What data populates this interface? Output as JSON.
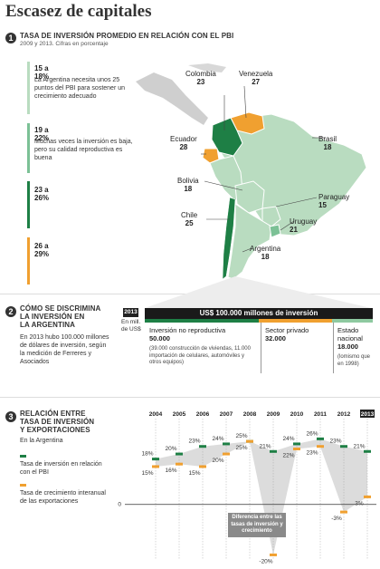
{
  "title": "Escasez de capitales",
  "section1": {
    "number": "1",
    "heading": "TASA DE INVERSIÓN PROMEDIO EN RELACIÓN CON EL PBI",
    "subheading": "2009 y 2013. Cifras en porcentaje",
    "legend": [
      {
        "range": "15 a 18%",
        "text": "La Argentina necesita unos 25 puntos del PBI para sostener un crecimiento adecuado",
        "color": "#b9dcc0"
      },
      {
        "range": "19 a 22%",
        "text": "Muchas veces la inversión es baja, pero su calidad reproductiva es buena",
        "color": "#7cc196"
      },
      {
        "range": "23 a 26%",
        "text": "",
        "color": "#1e7f45"
      },
      {
        "range": "26 a 29%",
        "text": "",
        "color": "#f0a030"
      }
    ],
    "countries": [
      {
        "name": "Colombia",
        "value": "23"
      },
      {
        "name": "Venezuela",
        "value": "27"
      },
      {
        "name": "Ecuador",
        "value": "28"
      },
      {
        "name": "Brasil",
        "value": "18"
      },
      {
        "name": "Bolivia",
        "value": "18"
      },
      {
        "name": "Paraguay",
        "value": "15"
      },
      {
        "name": "Chile",
        "value": "25"
      },
      {
        "name": "Uruguay",
        "value": "21"
      },
      {
        "name": "Argentina",
        "value": "18"
      }
    ]
  },
  "section2": {
    "number": "2",
    "heading_line1": "CÓMO SE DISCRIMINA",
    "heading_line2": "LA INVERSIÓN EN",
    "heading_line3": "LA ARGENTINA",
    "text": "En 2013 hubo 100.000 millones de dólares de inversión, según la medición de Ferreres y Asociados",
    "year": "2013",
    "unit_line1": "En mill.",
    "unit_line2": "de US$",
    "total_label": "US$ 100.000 millones de inversión",
    "blocks": [
      {
        "label": "Inversión no reproductiva",
        "value": "50.000",
        "note": "(39.000 construcción de viviendas, 11.000 importación de celulares, automóviles y otros equipos)",
        "color": "#1e7f45",
        "share": 50
      },
      {
        "label": "Sector privado",
        "value": "32.000",
        "note": "",
        "color": "#f0a030",
        "share": 32
      },
      {
        "label": "Estado nacional",
        "value": "18.000",
        "note": "(lomismo que en 1998)",
        "color": "#8ec9a0",
        "share": 18
      }
    ]
  },
  "section3": {
    "number": "3",
    "heading_line1": "RELACIÓN ENTRE",
    "heading_line2": "TASA DE INVERSIÓN",
    "heading_line3": "Y EXPORTACIONES",
    "subheading": "En la Argentina",
    "legend": [
      {
        "text": "Tasa de inversión en relación con el PBI",
        "color": "#1e7f45"
      },
      {
        "text": "Tasa de crecimiento interanual de las exportaciones",
        "color": "#f0a030"
      }
    ],
    "annotation": "Diferencia entre las tasas de inversión y crecimiento",
    "zero_label": "0"
  },
  "chart_data": {
    "type": "line",
    "title": "RELACIÓN ENTRE TASA DE INVERSIÓN Y EXPORTACIONES",
    "x": [
      "2004",
      "2005",
      "2006",
      "2007",
      "2008",
      "2009",
      "2010",
      "2011",
      "2012",
      "2013"
    ],
    "series": [
      {
        "name": "Tasa de inversión en relación con el PBI",
        "values": [
          18,
          20,
          23,
          24,
          25,
          21,
          24,
          26,
          23,
          21
        ],
        "labels": [
          "18%",
          "20%",
          "23%",
          "24%",
          "25%",
          "21%",
          "24%",
          "26%",
          "23%",
          "21%"
        ]
      },
      {
        "name": "Tasa de crecimiento interanual de las exportaciones",
        "values": [
          15,
          16,
          15,
          20,
          25,
          -20,
          22,
          23,
          -3,
          3
        ],
        "labels": [
          "15%",
          "16%",
          "15%",
          "20%",
          "25%",
          "-20%",
          "22%",
          "23%",
          "-3%",
          "3%"
        ]
      }
    ],
    "ylim": [
      -22,
      29
    ],
    "highlight_x": "2013",
    "colors": {
      "investment": "#1e7f45",
      "exports": "#f0a030",
      "gap": "#dcdcdc"
    }
  }
}
